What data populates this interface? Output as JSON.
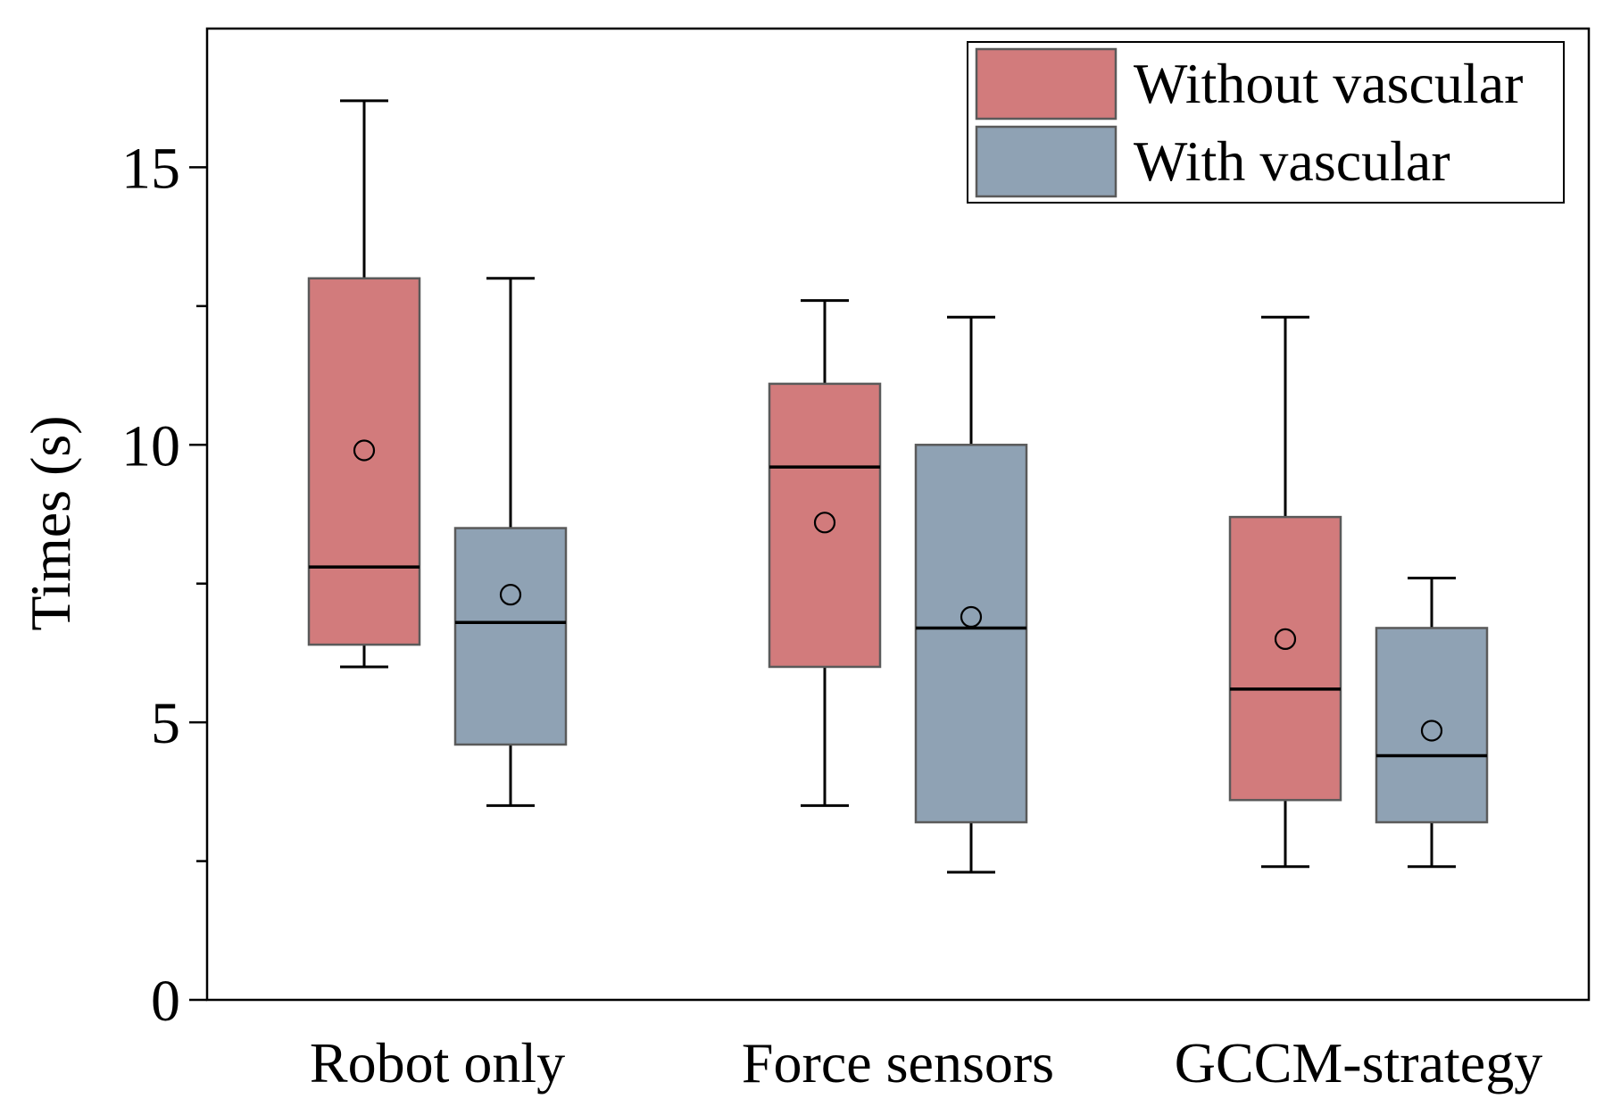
{
  "chart_data": {
    "type": "box",
    "title": "",
    "xlabel": "",
    "ylabel": "Times (s)",
    "ylim": [
      0,
      17.5
    ],
    "yticks": [
      0,
      5,
      10,
      15
    ],
    "yminor_ticks": [
      2.5,
      7.5,
      12.5
    ],
    "grid": false,
    "legend_position": "top-right",
    "categories": [
      "Robot only",
      "Force sensors",
      "GCCM-strategy"
    ],
    "series": [
      {
        "name": "Without vascular",
        "color": "#d27b7c",
        "boxes": [
          {
            "whisker_low": 6.0,
            "q1": 6.4,
            "median": 7.8,
            "q3": 13.0,
            "whisker_high": 16.2,
            "mean": 9.9
          },
          {
            "whisker_low": 3.5,
            "q1": 6.0,
            "median": 9.6,
            "q3": 11.1,
            "whisker_high": 12.6,
            "mean": 8.6
          },
          {
            "whisker_low": 2.4,
            "q1": 3.6,
            "median": 5.6,
            "q3": 8.7,
            "whisker_high": 12.3,
            "mean": 6.5
          }
        ]
      },
      {
        "name": "With vascular",
        "color": "#8fa2b4",
        "boxes": [
          {
            "whisker_low": 3.5,
            "q1": 4.6,
            "median": 6.8,
            "q3": 8.5,
            "whisker_high": 13.0,
            "mean": 7.3
          },
          {
            "whisker_low": 2.3,
            "q1": 3.2,
            "median": 6.7,
            "q3": 10.0,
            "whisker_high": 12.3,
            "mean": 6.9
          },
          {
            "whisker_low": 2.4,
            "q1": 3.2,
            "median": 4.4,
            "q3": 6.7,
            "whisker_high": 7.6,
            "mean": 4.85
          }
        ]
      }
    ]
  }
}
